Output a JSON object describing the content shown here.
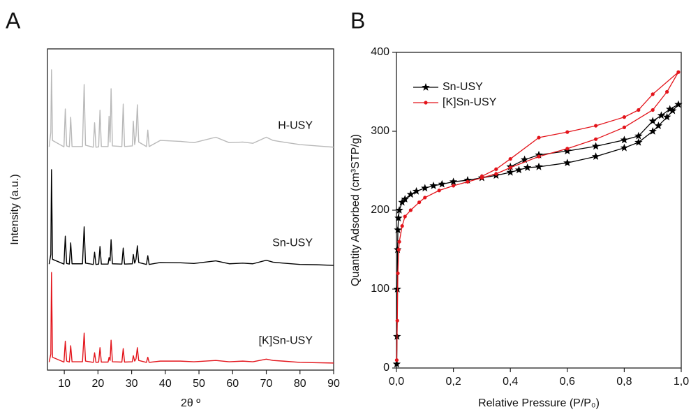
{
  "chart_data": [
    {
      "type": "line",
      "panel_label": "A",
      "xlabel": "2θ º",
      "ylabel": "Intensity (a.u.)",
      "x": [
        5.5,
        6.0,
        6.2,
        6.5,
        9.9,
        10.3,
        10.7,
        11.5,
        11.9,
        12.3,
        15.4,
        15.9,
        16.3,
        18.6,
        19.0,
        19.4,
        20.2,
        20.6,
        21.0,
        23.0,
        23.3,
        23.6,
        23.9,
        24.3,
        27.1,
        27.5,
        27.9,
        30.2,
        30.5,
        30.9,
        31.3,
        31.7,
        32.1,
        34.4,
        34.8,
        35.2,
        38.5,
        44.5,
        48.5,
        55.0,
        59.0,
        63.0,
        66.0,
        70.0,
        72.0,
        75.0,
        80.0,
        85.0,
        90.0
      ],
      "xlim": [
        5,
        90
      ],
      "xticks": [
        10,
        20,
        30,
        40,
        50,
        60,
        70,
        80,
        90
      ],
      "ylim": [
        0,
        100
      ],
      "series": [
        {
          "name": "H-USY",
          "color": "#b9b9b9",
          "values": [
            69.5,
            74,
            93.5,
            71.5,
            69.5,
            81.3,
            69.8,
            69.5,
            78.7,
            69.6,
            69.6,
            88.9,
            70,
            69.4,
            77,
            69.4,
            69.5,
            80.9,
            69.6,
            69.6,
            79,
            71,
            87.6,
            69.8,
            69.6,
            82.8,
            69.6,
            69.8,
            77.5,
            70.2,
            73,
            82.6,
            71,
            69.6,
            74.7,
            69.6,
            71.5,
            71.2,
            70.8,
            72.5,
            70.8,
            71,
            70.6,
            72.5,
            71.5,
            71,
            70.2,
            69.8,
            69.4
          ]
        },
        {
          "name": "Sn-USY",
          "color": "#000000",
          "values": [
            33,
            36,
            62.4,
            34.5,
            33,
            41.7,
            33.2,
            33,
            39.6,
            33.1,
            33.1,
            44.6,
            33.3,
            32.9,
            36.7,
            32.9,
            33,
            38.5,
            33,
            33,
            35,
            34,
            40.6,
            33.1,
            33,
            38,
            33,
            33.1,
            36,
            33.3,
            34.5,
            38.7,
            33.5,
            32.9,
            35.6,
            32.9,
            33.5,
            33.4,
            33.2,
            34,
            33.1,
            33.3,
            33.1,
            34.2,
            33.6,
            33.3,
            32.9,
            32.8,
            32.6
          ]
        },
        {
          "name": "[K]Sn-USY",
          "color": "#e3141b",
          "values": [
            2.5,
            5,
            30.4,
            4,
            2.5,
            9,
            2.8,
            2.5,
            7.6,
            2.6,
            2.6,
            11.5,
            2.8,
            2.4,
            5.4,
            2.4,
            2.5,
            7,
            2.5,
            2.5,
            4,
            3,
            9.3,
            2.6,
            2.5,
            6.7,
            2.5,
            2.6,
            4.5,
            2.8,
            3.5,
            7,
            3,
            2.4,
            4,
            2.4,
            2.8,
            2.8,
            2.6,
            3,
            2.6,
            2.8,
            2.6,
            3.4,
            3,
            2.8,
            2.4,
            2.3,
            2.2
          ]
        }
      ]
    },
    {
      "type": "line",
      "panel_label": "B",
      "xlabel": "Relative Pressure (P/P₀)",
      "ylabel": "Quantity Adsorbed (cm³STP/g)",
      "xlim": [
        0,
        1.0
      ],
      "xticks": [
        {
          "value": 0,
          "label": "0,0"
        },
        {
          "value": 0.2,
          "label": "0,2"
        },
        {
          "value": 0.4,
          "label": "0,4"
        },
        {
          "value": 0.6,
          "label": "0,6"
        },
        {
          "value": 0.8,
          "label": "0,8"
        },
        {
          "value": 1.0,
          "label": "1,0"
        }
      ],
      "ylim": [
        0,
        400
      ],
      "yticks": [
        0,
        100,
        200,
        300,
        400
      ],
      "series": [
        {
          "name": "Sn-USY",
          "color": "#000000",
          "marker": "star",
          "x": [
            0.001,
            0.002,
            0.003,
            0.004,
            0.005,
            0.007,
            0.01,
            0.02,
            0.03,
            0.05,
            0.07,
            0.1,
            0.13,
            0.16,
            0.2,
            0.25,
            0.3,
            0.35,
            0.4,
            0.43,
            0.46,
            0.5,
            0.6,
            0.7,
            0.8,
            0.85,
            0.9,
            0.92,
            0.95,
            0.97,
            0.99,
            0.96,
            0.93,
            0.9,
            0.85,
            0.8,
            0.7,
            0.6,
            0.5,
            0.45,
            0.4
          ],
          "values": [
            5,
            40,
            100,
            150,
            175,
            190,
            200,
            210,
            214,
            220,
            224,
            228,
            231,
            233,
            236,
            238,
            241,
            244,
            248,
            251,
            254,
            255,
            260,
            268,
            279,
            286,
            300,
            307,
            318,
            326,
            334,
            328,
            320,
            313,
            294,
            289,
            281,
            275,
            270,
            264,
            255
          ]
        },
        {
          "name": "[K]Sn-USY",
          "color": "#e3141b",
          "marker": "circle",
          "x": [
            0.001,
            0.003,
            0.005,
            0.008,
            0.01,
            0.02,
            0.03,
            0.05,
            0.08,
            0.1,
            0.15,
            0.2,
            0.25,
            0.3,
            0.35,
            0.4,
            0.5,
            0.6,
            0.7,
            0.8,
            0.9,
            0.95,
            0.99,
            0.9,
            0.85,
            0.8,
            0.7,
            0.6,
            0.5,
            0.4,
            0.35,
            0.3
          ],
          "values": [
            10,
            60,
            120,
            150,
            160,
            180,
            192,
            200,
            210,
            216,
            225,
            231,
            236,
            241,
            246,
            254,
            268,
            278,
            290,
            305,
            327,
            350,
            375,
            347,
            327,
            318,
            307,
            299,
            292,
            265,
            252,
            243
          ]
        }
      ]
    }
  ]
}
